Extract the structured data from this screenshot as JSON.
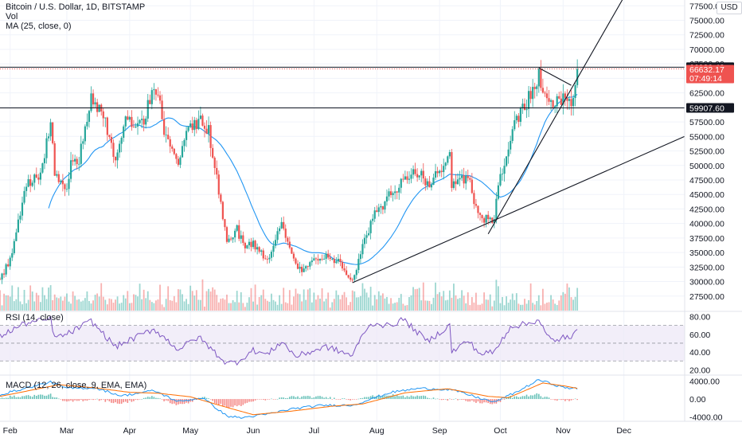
{
  "legend": {
    "symbol": "Bitcoin / U.S. Dollar, 1D, BITSTAMP",
    "vol": "Vol",
    "ma": "MA (25, close, 0)",
    "rsi": "RSI (14, close)",
    "macd": "MACD (12, 26, close, 9, EMA, EMA)"
  },
  "currency_label": "USD",
  "colors": {
    "up": "#26a69a",
    "down": "#ef5350",
    "ma": "#2196f3",
    "rsi": "#7e57c2",
    "rsi_band": "#ede7f6",
    "macd": "#2196f3",
    "signal": "#ff6d00",
    "trendline": "#131722",
    "price_tag": "#ef5350",
    "level_tag": "#131722"
  },
  "price_tags": {
    "h1": "66930.43",
    "last": "66632.17",
    "countdown": "07:49:14",
    "h2": "59907.60"
  },
  "chart_data": [
    {
      "type": "candlestick",
      "title": "Bitcoin / U.S. Dollar, 1D, BITSTAMP",
      "x_ticks": [
        "Feb",
        "Mar",
        "Apr",
        "May",
        "Jun",
        "Jul",
        "Aug",
        "Sep",
        "Oct",
        "Nov",
        "Dec"
      ],
      "y_ticks": [
        "27500.00",
        "30000.00",
        "32500.00",
        "35000.00",
        "37500.00",
        "40000.00",
        "42500.00",
        "45000.00",
        "47500.00",
        "50000.00",
        "52500.00",
        "55000.00",
        "57500.00",
        "60000.00",
        "62500.00",
        "65000.00",
        "67500.00",
        "70000.00",
        "72500.00",
        "75000.00",
        "77500.00"
      ],
      "ylim": [
        25000,
        78500
      ],
      "x_range": [
        "2021-01-27",
        "2021-12-31"
      ],
      "series": [
        {
          "name": "Price",
          "close_points": [
            [
              "2021-01-27",
              30400
            ],
            [
              "2021-01-31",
              33100
            ],
            [
              "2021-02-04",
              37800
            ],
            [
              "2021-02-08",
              46200
            ],
            [
              "2021-02-12",
              47600
            ],
            [
              "2021-02-16",
              49000
            ],
            [
              "2021-02-21",
              57400
            ],
            [
              "2021-02-23",
              48900
            ],
            [
              "2021-02-28",
              45200
            ],
            [
              "2021-03-03",
              50400
            ],
            [
              "2021-03-07",
              51000
            ],
            [
              "2021-03-13",
              61200
            ],
            [
              "2021-03-19",
              58200
            ],
            [
              "2021-03-25",
              51500
            ],
            [
              "2021-03-29",
              57500
            ],
            [
              "2021-04-03",
              57200
            ],
            [
              "2021-04-08",
              58000
            ],
            [
              "2021-04-13",
              63200
            ],
            [
              "2021-04-16",
              61500
            ],
            [
              "2021-04-18",
              56100
            ],
            [
              "2021-04-25",
              49100
            ],
            [
              "2021-04-28",
              55000
            ],
            [
              "2021-05-03",
              57200
            ],
            [
              "2021-05-07",
              57400
            ],
            [
              "2021-05-10",
              55800
            ],
            [
              "2021-05-13",
              49600
            ],
            [
              "2021-05-19",
              37200
            ],
            [
              "2021-05-24",
              38900
            ],
            [
              "2021-05-28",
              35600
            ],
            [
              "2021-06-01",
              36800
            ],
            [
              "2021-06-08",
              33200
            ],
            [
              "2021-06-15",
              40200
            ],
            [
              "2021-06-22",
              32500
            ],
            [
              "2021-06-26",
              31600
            ],
            [
              "2021-07-01",
              34000
            ],
            [
              "2021-07-07",
              34200
            ],
            [
              "2021-07-12",
              33700
            ],
            [
              "2021-07-20",
              29800
            ],
            [
              "2021-07-26",
              37300
            ],
            [
              "2021-07-31",
              41500
            ],
            [
              "2021-08-07",
              44700
            ],
            [
              "2021-08-14",
              47000
            ],
            [
              "2021-08-20",
              49300
            ],
            [
              "2021-08-26",
              46800
            ],
            [
              "2021-09-01",
              48800
            ],
            [
              "2021-09-06",
              52600
            ],
            [
              "2021-09-07",
              46800
            ],
            [
              "2021-09-15",
              48100
            ],
            [
              "2021-09-21",
              40600
            ],
            [
              "2021-09-28",
              41000
            ],
            [
              "2021-10-01",
              48200
            ],
            [
              "2021-10-06",
              55300
            ],
            [
              "2021-10-15",
              61500
            ],
            [
              "2021-10-20",
              65900
            ],
            [
              "2021-10-24",
              61100
            ],
            [
              "2021-10-28",
              60500
            ],
            [
              "2021-11-01",
              61400
            ],
            [
              "2021-11-05",
              61100
            ],
            [
              "2021-11-08",
              66632
            ]
          ]
        },
        {
          "name": "MA (25, close, 0)",
          "period": 25
        }
      ],
      "horizontal_levels": [
        66930.43,
        59907.6
      ],
      "trendlines": [
        {
          "from": [
            "2021-07-20",
            29800
          ],
          "to": [
            "2021-12-31",
            55000
          ]
        },
        {
          "from": [
            "2021-09-25",
            38200
          ],
          "to": [
            "2021-12-01",
            79000
          ]
        },
        {
          "from": [
            "2021-10-20",
            66800
          ],
          "to": [
            "2021-11-05",
            63800
          ]
        }
      ]
    },
    {
      "type": "bar",
      "title": "Vol",
      "note": "daily volume histogram coloured by candle direction, no axis labels"
    },
    {
      "type": "line",
      "title": "RSI (14, close)",
      "y_ticks": [
        "20.00",
        "40.00",
        "60.00",
        "80.00"
      ],
      "ylim": [
        15,
        84
      ],
      "band": [
        30,
        70
      ],
      "reference_lines": [
        30,
        50,
        70
      ],
      "points": [
        [
          "2021-01-27",
          58
        ],
        [
          "2021-02-08",
          72
        ],
        [
          "2021-02-21",
          77
        ],
        [
          "2021-02-23",
          56
        ],
        [
          "2021-03-01",
          60
        ],
        [
          "2021-03-13",
          75
        ],
        [
          "2021-03-25",
          46
        ],
        [
          "2021-04-13",
          66
        ],
        [
          "2021-04-25",
          43
        ],
        [
          "2021-05-05",
          57
        ],
        [
          "2021-05-19",
          27
        ],
        [
          "2021-05-24",
          29
        ],
        [
          "2021-06-01",
          42
        ],
        [
          "2021-06-08",
          37
        ],
        [
          "2021-06-15",
          52
        ],
        [
          "2021-06-22",
          35
        ],
        [
          "2021-07-07",
          46
        ],
        [
          "2021-07-20",
          36
        ],
        [
          "2021-07-26",
          64
        ],
        [
          "2021-07-31",
          73
        ],
        [
          "2021-08-07",
          69
        ],
        [
          "2021-08-14",
          77
        ],
        [
          "2021-08-26",
          52
        ],
        [
          "2021-09-06",
          70
        ],
        [
          "2021-09-07",
          40
        ],
        [
          "2021-09-15",
          53
        ],
        [
          "2021-09-21",
          38
        ],
        [
          "2021-09-28",
          40
        ],
        [
          "2021-10-06",
          69
        ],
        [
          "2021-10-15",
          72
        ],
        [
          "2021-10-20",
          77
        ],
        [
          "2021-10-24",
          58
        ],
        [
          "2021-10-28",
          51
        ],
        [
          "2021-11-01",
          58
        ],
        [
          "2021-11-05",
          54
        ],
        [
          "2021-11-08",
          66
        ]
      ]
    },
    {
      "type": "bar",
      "title": "MACD (12, 26, close, 9, EMA, EMA)",
      "y_ticks": [
        "-4000.00",
        "0.00",
        "4000.00"
      ],
      "ylim": [
        -4800,
        5000
      ],
      "series": [
        {
          "name": "MACD",
          "points": [
            [
              "2021-01-27",
              1000
            ],
            [
              "2021-02-21",
              3800
            ],
            [
              "2021-03-01",
              2400
            ],
            [
              "2021-03-15",
              2500
            ],
            [
              "2021-03-28",
              700
            ],
            [
              "2021-04-13",
              1900
            ],
            [
              "2021-04-25",
              -600
            ],
            [
              "2021-05-07",
              300
            ],
            [
              "2021-05-19",
              -3800
            ],
            [
              "2021-05-26",
              -4200
            ],
            [
              "2021-06-08",
              -3400
            ],
            [
              "2021-06-20",
              -2200
            ],
            [
              "2021-07-05",
              -1400
            ],
            [
              "2021-07-20",
              -1400
            ],
            [
              "2021-08-08",
              1500
            ],
            [
              "2021-08-22",
              2400
            ],
            [
              "2021-09-07",
              2100
            ],
            [
              "2021-09-20",
              300
            ],
            [
              "2021-09-28",
              -700
            ],
            [
              "2021-10-10",
              1800
            ],
            [
              "2021-10-20",
              4300
            ],
            [
              "2021-11-01",
              2600
            ],
            [
              "2021-11-08",
              2300
            ]
          ]
        },
        {
          "name": "Signal",
          "points": [
            [
              "2021-01-27",
              600
            ],
            [
              "2021-02-25",
              3200
            ],
            [
              "2021-03-15",
              2500
            ],
            [
              "2021-04-01",
              1500
            ],
            [
              "2021-04-15",
              1300
            ],
            [
              "2021-05-01",
              500
            ],
            [
              "2021-05-20",
              -2000
            ],
            [
              "2021-06-01",
              -3500
            ],
            [
              "2021-06-20",
              -2700
            ],
            [
              "2021-07-10",
              -1600
            ],
            [
              "2021-07-25",
              -1100
            ],
            [
              "2021-08-15",
              1400
            ],
            [
              "2021-09-05",
              2300
            ],
            [
              "2021-09-25",
              600
            ],
            [
              "2021-10-05",
              300
            ],
            [
              "2021-10-22",
              3600
            ],
            [
              "2021-11-02",
              2900
            ],
            [
              "2021-11-08",
              2400
            ]
          ]
        }
      ]
    }
  ]
}
